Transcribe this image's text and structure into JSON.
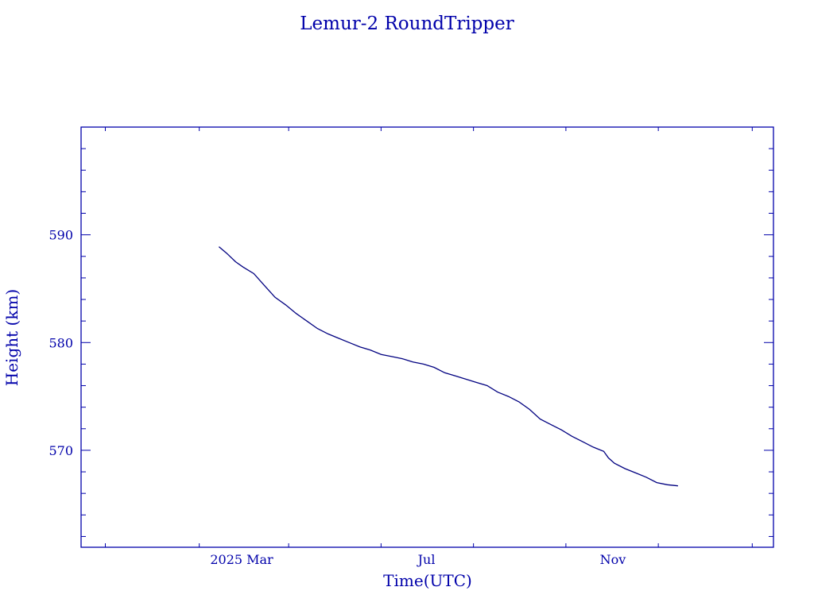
{
  "chart_data": {
    "type": "line",
    "title": "Lemur-2 RoundTripper",
    "xlabel": "Time(UTC)",
    "ylabel": "Height (km)",
    "x_ticks": [
      {
        "label": "2025 Mar",
        "date": "2025-03-01"
      },
      {
        "label": "Jul",
        "date": "2025-07-01"
      },
      {
        "label": "Nov",
        "date": "2025-11-01"
      }
    ],
    "y_ticks": [
      570,
      580,
      590
    ],
    "xlim": [
      "2024-11-15",
      "2026-02-15"
    ],
    "ylim": [
      561,
      600
    ],
    "grid": false,
    "line_color": "#000080",
    "axis_color": "#0000aa",
    "series": [
      {
        "x": [
          "2025-02-14",
          "2025-02-19",
          "2025-02-25",
          "2025-03-02",
          "2025-03-09",
          "2025-03-16",
          "2025-03-23",
          "2025-03-30",
          "2025-04-06",
          "2025-04-13",
          "2025-04-20",
          "2025-04-27",
          "2025-05-04",
          "2025-05-11",
          "2025-05-18",
          "2025-05-25",
          "2025-06-01",
          "2025-06-08",
          "2025-06-15",
          "2025-06-22",
          "2025-06-29",
          "2025-07-06",
          "2025-07-13",
          "2025-07-20",
          "2025-07-27",
          "2025-08-03",
          "2025-08-10",
          "2025-08-17",
          "2025-08-24",
          "2025-08-31",
          "2025-09-07",
          "2025-09-14",
          "2025-09-21",
          "2025-09-28",
          "2025-10-05",
          "2025-10-12",
          "2025-10-19",
          "2025-10-26",
          "2025-10-29",
          "2025-11-02",
          "2025-11-09",
          "2025-11-16",
          "2025-11-23",
          "2025-11-30",
          "2025-12-07",
          "2025-12-14"
        ],
        "y": [
          588.9,
          588.3,
          587.5,
          587.0,
          586.4,
          585.3,
          584.2,
          583.5,
          582.7,
          582.0,
          581.3,
          580.8,
          580.4,
          580.0,
          579.6,
          579.3,
          578.9,
          578.7,
          578.5,
          578.2,
          578.0,
          577.7,
          577.2,
          576.9,
          576.6,
          576.3,
          576.0,
          575.4,
          575.0,
          574.5,
          573.8,
          572.9,
          572.4,
          571.9,
          571.3,
          570.8,
          570.3,
          569.9,
          569.3,
          568.8,
          568.3,
          567.9,
          567.5,
          567.0,
          566.8,
          566.7
        ]
      }
    ]
  }
}
